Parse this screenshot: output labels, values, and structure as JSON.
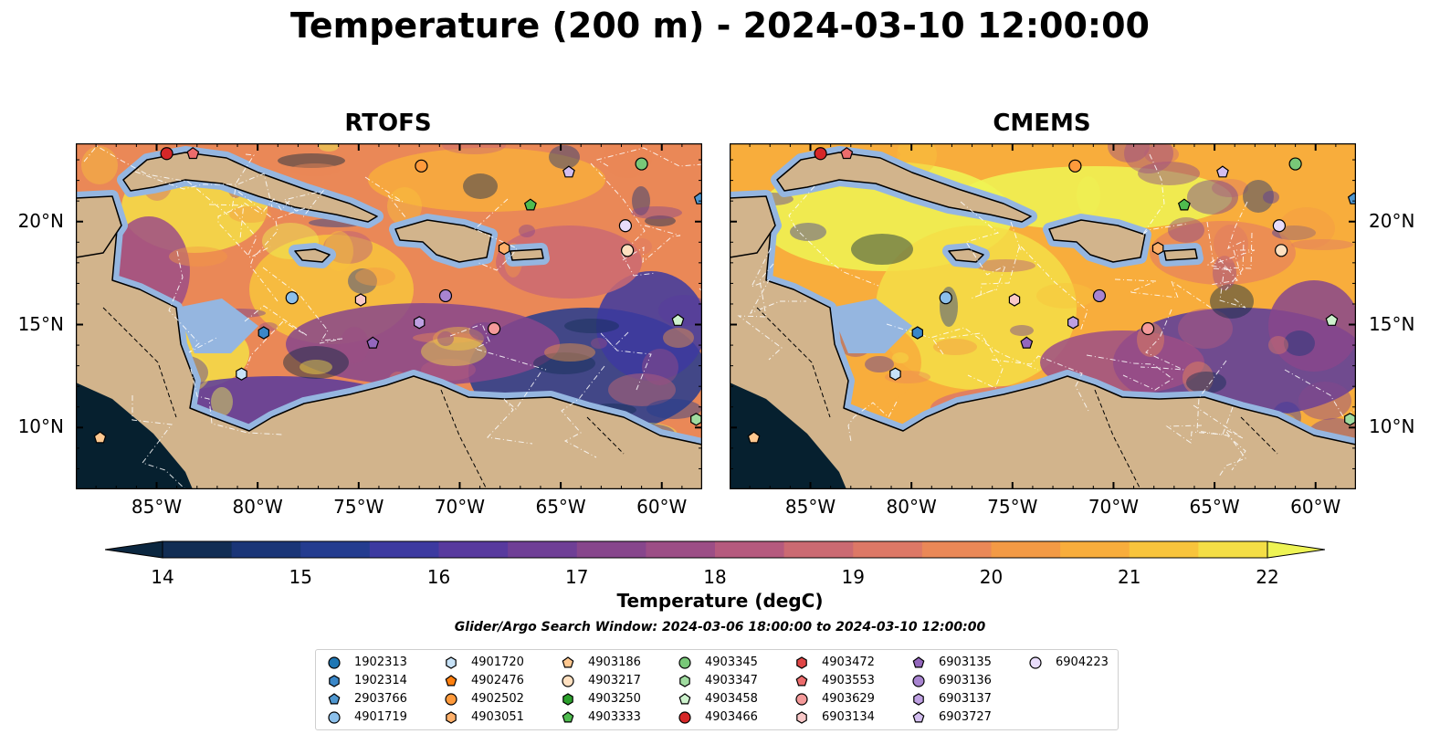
{
  "title": "Temperature (200 m) - 2024-03-10 12:00:00",
  "panels": [
    {
      "title": "RTOFS",
      "variant": "warm-low"
    },
    {
      "title": "CMEMS",
      "variant": "warm-high"
    }
  ],
  "lon_ticks": [
    "85°W",
    "80°W",
    "75°W",
    "70°W",
    "65°W",
    "60°W"
  ],
  "lat_ticks": [
    "20°N",
    "15°N",
    "10°N"
  ],
  "map_extent": {
    "lon": [
      -89.0,
      -58.0
    ],
    "lat": [
      7.0,
      23.8
    ]
  },
  "colorbar": {
    "label": "Temperature (degC)",
    "ticks": [
      "14",
      "15",
      "16",
      "17",
      "18",
      "19",
      "20",
      "21",
      "22"
    ],
    "range": [
      14,
      22
    ],
    "extend": "both",
    "colors": [
      "#0b2740",
      "#112d54",
      "#1a3577",
      "#243c8f",
      "#3d3aa0",
      "#583a9e",
      "#6f3f96",
      "#87468c",
      "#9c4e86",
      "#b55a7e",
      "#cb6a72",
      "#dd7866",
      "#ea8857",
      "#f39a45",
      "#f8ad3c",
      "#f8c43c",
      "#f4de46",
      "#eef454"
    ]
  },
  "search_window": "Glider/Argo Search Window: 2024-03-06 18:00:00 to 2024-03-10 12:00:00",
  "colors": {
    "land": "#d2b48c",
    "shelf": "#95b6e0",
    "pacific": "#06202f",
    "tracks": "#ffffff"
  },
  "floats": [
    {
      "id": "1902313",
      "marker": "circle",
      "color": "#1f77b4"
    },
    {
      "id": "1902314",
      "marker": "hexagon",
      "color": "#3a87c8"
    },
    {
      "id": "2903766",
      "marker": "pentagon",
      "color": "#4f97d0"
    },
    {
      "id": "4901719",
      "marker": "circle",
      "color": "#8cc0eb"
    },
    {
      "id": "4901720",
      "marker": "hexagon",
      "color": "#c7e2f7"
    },
    {
      "id": "4902476",
      "marker": "pentagon",
      "color": "#ff7f0e"
    },
    {
      "id": "4902502",
      "marker": "circle",
      "color": "#ff9a3c"
    },
    {
      "id": "4903051",
      "marker": "hexagon",
      "color": "#ffb06a"
    },
    {
      "id": "4903186",
      "marker": "pentagon",
      "color": "#ffc890"
    },
    {
      "id": "4903217",
      "marker": "circle",
      "color": "#ffe0c0"
    },
    {
      "id": "4903250",
      "marker": "hexagon",
      "color": "#2ca02c"
    },
    {
      "id": "4903333",
      "marker": "pentagon",
      "color": "#4fbc4f"
    },
    {
      "id": "4903345",
      "marker": "circle",
      "color": "#78c878"
    },
    {
      "id": "4903347",
      "marker": "hexagon",
      "color": "#a0dca0"
    },
    {
      "id": "4903458",
      "marker": "pentagon",
      "color": "#cdf2cd"
    },
    {
      "id": "4903466",
      "marker": "circle",
      "color": "#d62728"
    },
    {
      "id": "4903472",
      "marker": "hexagon",
      "color": "#e04646"
    },
    {
      "id": "4903553",
      "marker": "pentagon",
      "color": "#ec6c6c"
    },
    {
      "id": "4903629",
      "marker": "circle",
      "color": "#f49a9a"
    },
    {
      "id": "6903134",
      "marker": "hexagon",
      "color": "#f9c8c8"
    },
    {
      "id": "6903135",
      "marker": "pentagon",
      "color": "#9467bd"
    },
    {
      "id": "6903136",
      "marker": "circle",
      "color": "#a884d0"
    },
    {
      "id": "6903137",
      "marker": "hexagon",
      "color": "#bea0e2"
    },
    {
      "id": "6903727",
      "marker": "pentagon",
      "color": "#d3bef0"
    },
    {
      "id": "6904223",
      "marker": "circle",
      "color": "#e8dcfa"
    }
  ],
  "positions": [
    {
      "id": "4903466",
      "lon": -84.5,
      "lat": 23.3
    },
    {
      "id": "4903553",
      "lon": -83.2,
      "lat": 23.3
    },
    {
      "id": "4902502",
      "lon": -71.9,
      "lat": 22.7
    },
    {
      "id": "6903727",
      "lon": -64.6,
      "lat": 22.4
    },
    {
      "id": "4903345",
      "lon": -61.0,
      "lat": 22.8
    },
    {
      "id": "2903766",
      "lon": -58.1,
      "lat": 21.1
    },
    {
      "id": "4903333",
      "lon": -66.5,
      "lat": 20.8
    },
    {
      "id": "6904223",
      "lon": -61.8,
      "lat": 19.8
    },
    {
      "id": "4903051",
      "lon": -67.8,
      "lat": 18.7
    },
    {
      "id": "4903217",
      "lon": -61.7,
      "lat": 18.6
    },
    {
      "id": "4901719",
      "lon": -78.3,
      "lat": 16.3
    },
    {
      "id": "6903134",
      "lon": -74.9,
      "lat": 16.2
    },
    {
      "id": "6903136",
      "lon": -70.7,
      "lat": 16.4
    },
    {
      "id": "6903137",
      "lon": -72.0,
      "lat": 15.1
    },
    {
      "id": "4903629",
      "lon": -68.3,
      "lat": 14.8
    },
    {
      "id": "1902314",
      "lon": -79.7,
      "lat": 14.6
    },
    {
      "id": "6903135",
      "lon": -74.3,
      "lat": 14.1
    },
    {
      "id": "4903458",
      "lon": -59.2,
      "lat": 15.2
    },
    {
      "id": "4901720",
      "lon": -80.8,
      "lat": 12.6
    },
    {
      "id": "4903347",
      "lon": -58.3,
      "lat": 10.4
    },
    {
      "id": "4903186",
      "lon": -87.8,
      "lat": 9.5
    }
  ]
}
